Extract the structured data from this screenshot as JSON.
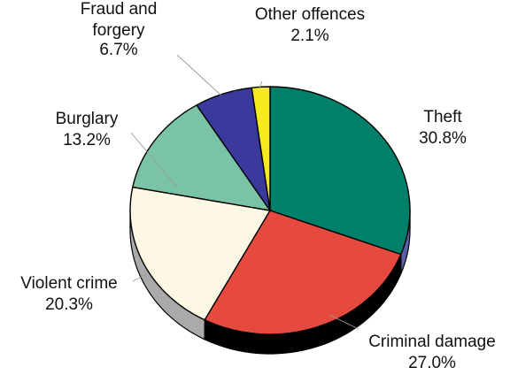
{
  "chart_data": {
    "type": "pie",
    "style": "3d",
    "start_angle_deg": 0,
    "direction": "clockwise",
    "slices": [
      {
        "label": "Theft",
        "value": 30.8,
        "value_label": "30.8%",
        "color": "#00806a",
        "side_color": "#5a5fa8"
      },
      {
        "label": "Criminal damage",
        "value": 27.0,
        "value_label": "27.0%",
        "color": "#e64a3f",
        "side_color": "#000000"
      },
      {
        "label": "Violent crime",
        "value": 20.3,
        "value_label": "20.3%",
        "color": "#fdf8e3",
        "side_color": "#aaaaaa"
      },
      {
        "label": "Burglary",
        "value": 13.2,
        "value_label": "13.2%",
        "color": "#7ac3a6",
        "side_color": "#7ac3a6"
      },
      {
        "label": "Fraud and forgery",
        "value": 6.7,
        "value_label": "6.7%",
        "color": "#3a3a9c",
        "side_color": "#3a3a9c"
      },
      {
        "label": "Other offences",
        "value": 2.1,
        "value_label": "2.1%",
        "color": "#f6ea1e",
        "side_color": "#f6ea1e"
      }
    ]
  }
}
